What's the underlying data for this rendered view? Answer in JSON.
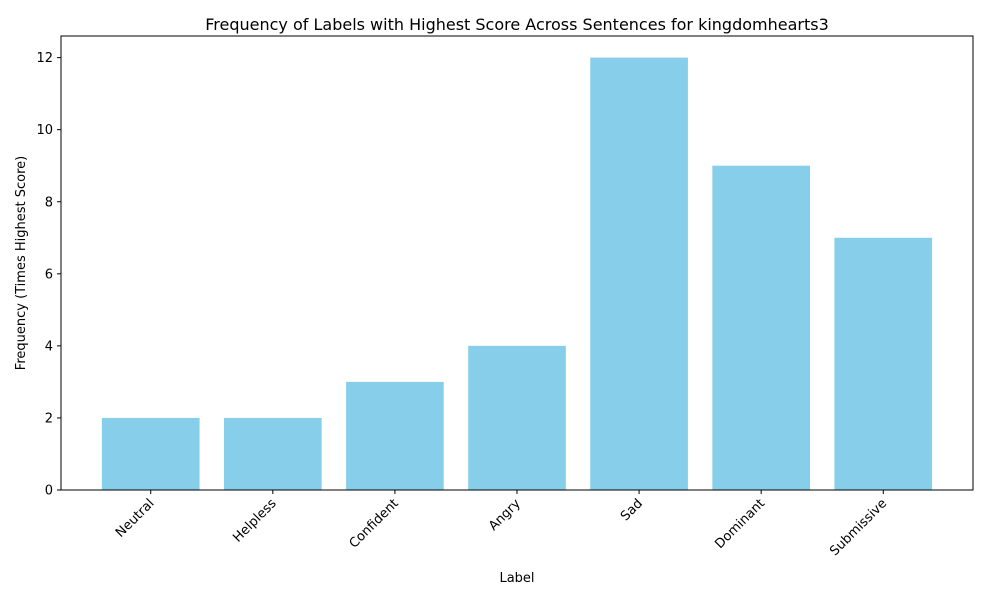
{
  "chart_data": {
    "type": "bar",
    "title": "Frequency of Labels with Highest Score Across Sentences for kingdomhearts3",
    "xlabel": "Label",
    "ylabel": "Frequency (Times Highest Score)",
    "categories": [
      "Neutral",
      "Helpless",
      "Confident",
      "Angry",
      "Sad",
      "Dominant",
      "Submissive"
    ],
    "values": [
      2,
      2,
      3,
      4,
      12,
      9,
      7
    ],
    "ylim": [
      0,
      12.6
    ],
    "yticks": [
      0,
      2,
      4,
      6,
      8,
      10,
      12
    ],
    "bar_color": "#87CEEB",
    "grid": false,
    "legend": "none"
  }
}
